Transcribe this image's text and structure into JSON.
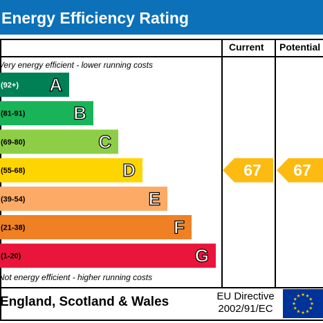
{
  "title": "Energy Efficiency Rating",
  "columns": {
    "current": "Current",
    "potential": "Potential"
  },
  "top_note": "Very energy efficient - lower running costs",
  "bottom_note": "Not energy efficient - higher running costs",
  "footer": {
    "country": "England, Scotland & Wales",
    "directive_line1": "EU Directive",
    "directive_line2": "2002/91/EC"
  },
  "colors": {
    "header": "#0c71b9",
    "arrow": "#fdbb12",
    "flag": "#003399",
    "star": "#ffcc00"
  },
  "chart_data": {
    "type": "bar",
    "bands": [
      {
        "letter": "A",
        "range": "(92+)",
        "color": "#008054"
      },
      {
        "letter": "B",
        "range": "(81-91)",
        "color": "#19b459"
      },
      {
        "letter": "C",
        "range": "(69-80)",
        "color": "#8dce46"
      },
      {
        "letter": "D",
        "range": "(55-68)",
        "color": "#ffd500"
      },
      {
        "letter": "E",
        "range": "(39-54)",
        "color": "#fcaa65"
      },
      {
        "letter": "F",
        "range": "(21-38)",
        "color": "#ef8023"
      },
      {
        "letter": "G",
        "range": "(1-20)",
        "color": "#e9153b"
      }
    ],
    "current": {
      "value": 67,
      "band": "D"
    },
    "potential": {
      "value": 67,
      "band": "D"
    }
  }
}
